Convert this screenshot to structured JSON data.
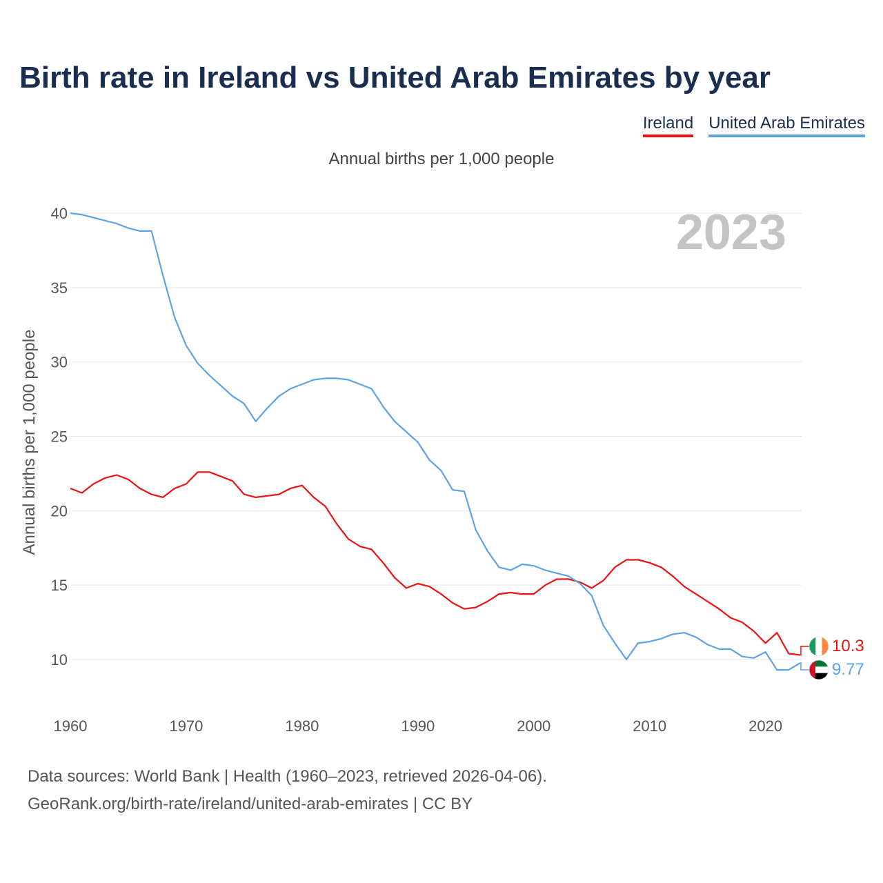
{
  "title": "Birth rate in Ireland vs United Arab Emirates by year",
  "subtitle": "Annual births per 1,000 people",
  "legend": [
    {
      "label": "Ireland",
      "color": "#ee1111"
    },
    {
      "label": "United Arab Emirates",
      "color": "#5ca3e6"
    }
  ],
  "year_watermark": "2023",
  "source_line1": "Data sources: World Bank | Health (1960–2023, retrieved 2026-04-06).",
  "source_line2": "GeoRank.org/birth-rate/ireland/united-arab-emirates | CC BY",
  "chart_data": {
    "type": "line",
    "title": "Birth rate in Ireland vs United Arab Emirates by year",
    "xlabel": "",
    "ylabel": "Annual births per 1,000 people",
    "xlim": [
      1960,
      2023
    ],
    "ylim": [
      7.5,
      41
    ],
    "xticks": [
      1960,
      1970,
      1980,
      1990,
      2000,
      2010,
      2020
    ],
    "yticks": [
      10,
      15,
      20,
      25,
      30,
      35,
      40
    ],
    "grid": true,
    "legend_position": "top-right",
    "x": [
      1960,
      1961,
      1962,
      1963,
      1964,
      1965,
      1966,
      1967,
      1968,
      1969,
      1970,
      1971,
      1972,
      1973,
      1974,
      1975,
      1976,
      1977,
      1978,
      1979,
      1980,
      1981,
      1982,
      1983,
      1984,
      1985,
      1986,
      1987,
      1988,
      1989,
      1990,
      1991,
      1992,
      1993,
      1994,
      1995,
      1996,
      1997,
      1998,
      1999,
      2000,
      2001,
      2002,
      2003,
      2004,
      2005,
      2006,
      2007,
      2008,
      2009,
      2010,
      2011,
      2012,
      2013,
      2014,
      2015,
      2016,
      2017,
      2018,
      2019,
      2020,
      2021,
      2022,
      2023
    ],
    "series": [
      {
        "name": "Ireland",
        "color": "#ee1111",
        "end_label": "10.3",
        "flag": "ireland-flag-icon",
        "values": [
          21.5,
          21.2,
          21.8,
          22.2,
          22.4,
          22.1,
          21.5,
          21.1,
          20.9,
          21.5,
          21.8,
          22.6,
          22.6,
          22.3,
          22.0,
          21.1,
          20.9,
          21.0,
          21.1,
          21.5,
          21.7,
          20.9,
          20.3,
          19.1,
          18.1,
          17.6,
          17.4,
          16.5,
          15.5,
          14.8,
          15.1,
          14.9,
          14.4,
          13.8,
          13.4,
          13.5,
          13.9,
          14.4,
          14.5,
          14.4,
          14.4,
          15.0,
          15.4,
          15.4,
          15.2,
          14.8,
          15.3,
          16.2,
          16.7,
          16.7,
          16.5,
          16.2,
          15.6,
          14.9,
          14.4,
          13.9,
          13.4,
          12.8,
          12.5,
          11.9,
          11.1,
          11.8,
          10.4,
          10.3
        ]
      },
      {
        "name": "United Arab Emirates",
        "color": "#5ca3e6",
        "end_label": "9.77",
        "flag": "uae-flag-icon",
        "values": [
          40.0,
          39.9,
          39.7,
          39.5,
          39.3,
          39.0,
          38.8,
          38.8,
          35.8,
          33.0,
          31.1,
          29.9,
          29.1,
          28.4,
          27.7,
          27.2,
          26.0,
          26.9,
          27.7,
          28.2,
          28.5,
          28.8,
          28.9,
          28.9,
          28.8,
          28.5,
          28.2,
          27.0,
          26.0,
          25.3,
          24.6,
          23.4,
          22.7,
          21.4,
          21.3,
          18.7,
          17.3,
          16.2,
          16.0,
          16.4,
          16.3,
          16.0,
          15.8,
          15.6,
          15.1,
          14.3,
          12.3,
          11.1,
          10.0,
          11.1,
          11.2,
          11.4,
          11.7,
          11.8,
          11.5,
          11.0,
          10.7,
          10.7,
          10.2,
          10.1,
          10.5,
          9.3,
          9.3,
          9.77
        ]
      }
    ]
  }
}
